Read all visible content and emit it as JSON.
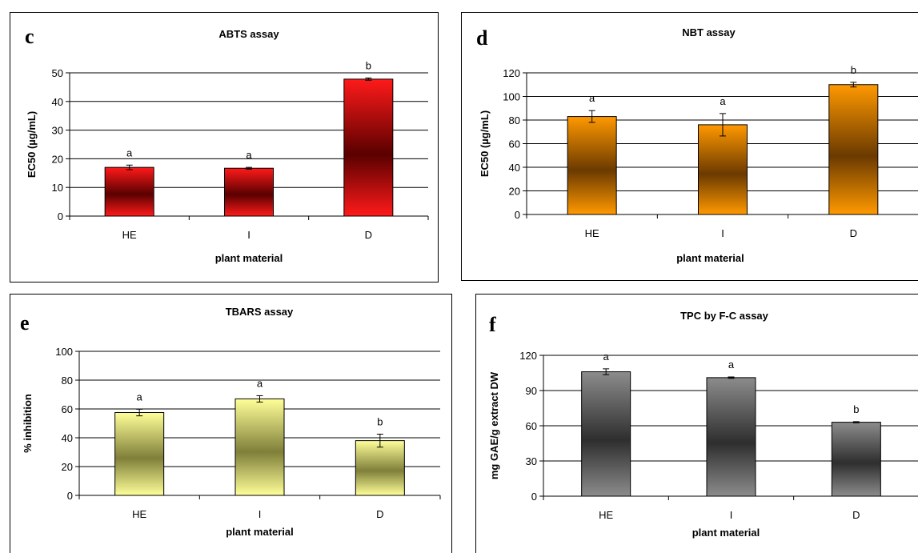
{
  "charts": [
    {
      "panel_letter": "c",
      "chart_data": {
        "type": "bar",
        "title": "ABTS assay",
        "xlabel": "plant material",
        "ylabel": "EC50 (µg/mL)",
        "categories": [
          "HE",
          "I",
          "D"
        ],
        "values": [
          17,
          16.7,
          47.8
        ],
        "errors": [
          0.8,
          0.3,
          0.4
        ],
        "significance": [
          "a",
          "a",
          "b"
        ],
        "ylim": [
          0,
          50
        ],
        "yticks": [
          0,
          10,
          20,
          30,
          40,
          50
        ],
        "grid": true,
        "legend": "none",
        "colors": {
          "edge": "#ff1a1a",
          "center": "#5a0000"
        }
      }
    },
    {
      "panel_letter": "d",
      "chart_data": {
        "type": "bar",
        "title": "NBT assay",
        "xlabel": "plant material",
        "ylabel": "EC50 (µg/mL)",
        "categories": [
          "HE",
          "I",
          "D"
        ],
        "values": [
          83,
          76,
          110
        ],
        "errors": [
          5,
          9.5,
          2
        ],
        "significance": [
          "a",
          "a",
          "b"
        ],
        "ylim": [
          0,
          120
        ],
        "yticks": [
          0,
          20,
          40,
          60,
          80,
          100,
          120
        ],
        "grid": true,
        "legend": "none",
        "colors": {
          "edge": "#ff9900",
          "center": "#6b3a00"
        }
      }
    },
    {
      "panel_letter": "e",
      "chart_data": {
        "type": "bar",
        "title": "TBARS assay",
        "xlabel": "plant material",
        "ylabel": "% inhibition",
        "categories": [
          "HE",
          "I",
          "D"
        ],
        "values": [
          57.5,
          67,
          38
        ],
        "errors": [
          2.3,
          2.2,
          4.5
        ],
        "significance": [
          "a",
          "a",
          "b"
        ],
        "ylim": [
          0,
          100
        ],
        "yticks": [
          0,
          20,
          40,
          60,
          80,
          100
        ],
        "grid": true,
        "legend": "none",
        "colors": {
          "edge": "#ffff99",
          "center": "#7f7f3a"
        }
      }
    },
    {
      "panel_letter": "f",
      "chart_data": {
        "type": "bar",
        "title": "TPC by F-C assay",
        "xlabel": "plant material",
        "ylabel": "mg GAE/g extract DW",
        "categories": [
          "HE",
          "I",
          "D"
        ],
        "values": [
          106,
          101,
          63
        ],
        "errors": [
          2.5,
          0.6,
          0.5
        ],
        "significance": [
          "a",
          "a",
          "b"
        ],
        "ylim": [
          0,
          120
        ],
        "yticks": [
          0,
          30,
          60,
          90,
          120
        ],
        "grid": true,
        "legend": "none",
        "colors": {
          "edge": "#8c8c8c",
          "center": "#2e2e2e"
        }
      }
    }
  ]
}
